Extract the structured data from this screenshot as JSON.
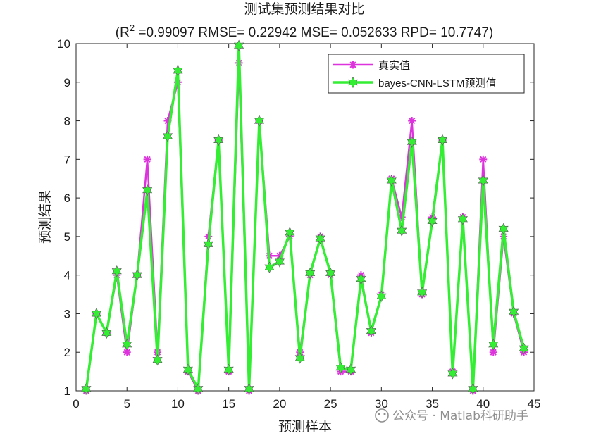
{
  "chart_data": {
    "type": "line",
    "title": "测试集预测结果对比",
    "subtitle_prefix": "(R",
    "subtitle_sup": "2",
    "subtitle_rest": " =0.99097 RMSE= 0.22942 MSE= 0.052633 RPD= 10.7747)",
    "xlabel": "预测样本",
    "ylabel": "预测结果",
    "xlim": [
      0,
      45
    ],
    "ylim": [
      1,
      10
    ],
    "xticks": [
      0,
      5,
      10,
      15,
      20,
      25,
      30,
      35,
      40,
      45
    ],
    "yticks": [
      1,
      2,
      3,
      4,
      5,
      6,
      7,
      8,
      9,
      10
    ],
    "legend_position": "top-right",
    "x": [
      1,
      2,
      3,
      4,
      5,
      6,
      7,
      8,
      9,
      10,
      11,
      12,
      13,
      14,
      15,
      16,
      17,
      18,
      19,
      20,
      21,
      22,
      23,
      24,
      25,
      26,
      27,
      28,
      29,
      30,
      31,
      32,
      33,
      34,
      35,
      36,
      37,
      38,
      39,
      40,
      41,
      42,
      43,
      44
    ],
    "series": [
      {
        "name": "真实值",
        "color": "#dd33dd",
        "values": [
          1,
          3,
          2.5,
          4,
          2,
          4,
          7,
          2,
          8,
          9,
          1.5,
          1,
          5,
          7.5,
          1.5,
          9.5,
          1,
          8,
          4.5,
          4.5,
          5,
          2,
          4,
          5,
          4,
          1.5,
          1.5,
          4,
          2.5,
          3.5,
          6.5,
          5.5,
          8,
          3.5,
          5.5,
          7.5,
          1.5,
          5.5,
          1,
          7,
          2,
          5,
          3,
          2
        ]
      },
      {
        "name": "bayes-CNN-LSTM预测值",
        "color": "#33ee33",
        "values": [
          1.05,
          3.0,
          2.5,
          4.1,
          2.2,
          4.0,
          6.2,
          1.8,
          7.6,
          9.3,
          1.55,
          1.05,
          4.8,
          7.5,
          1.55,
          9.95,
          1.05,
          8.0,
          4.2,
          4.35,
          5.1,
          1.85,
          4.05,
          4.95,
          4.05,
          1.6,
          1.55,
          3.9,
          2.55,
          3.45,
          6.45,
          5.15,
          7.45,
          3.55,
          5.4,
          7.5,
          1.45,
          5.45,
          1.05,
          6.45,
          2.2,
          5.2,
          3.05,
          2.1
        ]
      }
    ]
  },
  "watermark": "公众号 · Matlab科研助手"
}
